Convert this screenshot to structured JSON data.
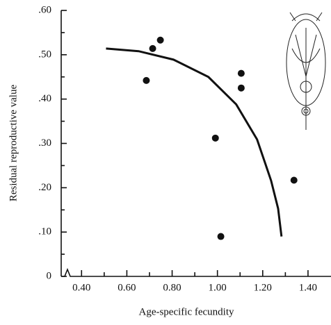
{
  "chart_data": {
    "type": "scatter",
    "xlabel": "Age-specific fecundity",
    "ylabel": "Residual reproductive value",
    "x": [
      0.686,
      0.714,
      0.748,
      0.991,
      1.105,
      1.105,
      1.015,
      1.338
    ],
    "values": [
      0.442,
      0.514,
      0.533,
      0.312,
      0.425,
      0.458,
      0.09,
      0.217
    ],
    "color": "#111111",
    "curve": {
      "x": [
        0.508,
        0.652,
        0.806,
        0.96,
        1.083,
        1.175,
        1.237,
        1.268,
        1.283
      ],
      "values": [
        0.514,
        0.508,
        0.489,
        0.45,
        0.388,
        0.309,
        0.216,
        0.153,
        0.09
      ]
    },
    "xlim": [
      0.35,
      1.5
    ],
    "ylim": [
      0,
      0.6
    ],
    "xticks": [
      {
        "value": 0.4,
        "label": "0.40"
      },
      {
        "value": 0.6,
        "label": "0.60"
      },
      {
        "value": 0.8,
        "label": "0.80"
      },
      {
        "value": 1.0,
        "label": "1.00"
      },
      {
        "value": 1.2,
        "label": "1.20"
      },
      {
        "value": 1.4,
        "label": "1.40"
      }
    ],
    "yticks": [
      0,
      {
        "value": 0.1,
        "label": ".10"
      },
      {
        "value": 0.2,
        "label": ".20"
      },
      {
        "value": 0.3,
        "label": ".30"
      },
      {
        "value": 0.4,
        "label": ".40"
      },
      {
        "value": 0.5,
        "label": ".50"
      },
      {
        "value": 0.6,
        "label": ".60"
      }
    ]
  }
}
